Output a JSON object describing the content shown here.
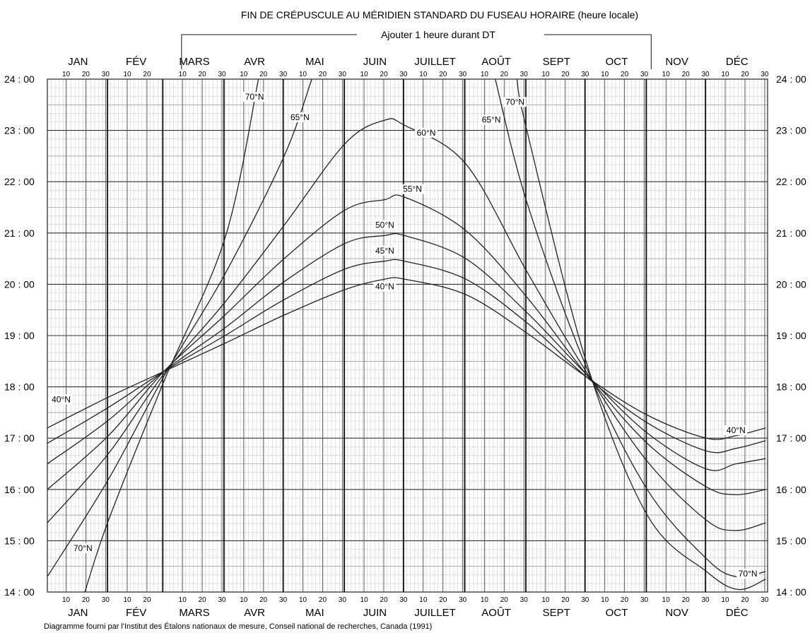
{
  "chart_data": {
    "type": "line",
    "title": "FIN DE CRÉPUSCULE AU MÉRIDIEN STANDARD DU FUSEAU HORAIRE (heure locale)",
    "dst_note": "Ajouter 1 heure durant DT",
    "dst_period": {
      "start_day_of_year": 69,
      "end_day_of_year": 307
    },
    "months": [
      "JAN",
      "FÉV",
      "MARS",
      "AVR",
      "MAI",
      "JUIN",
      "JUILLET",
      "AOÛT",
      "SEPT",
      "OCT",
      "NOV",
      "DÉC"
    ],
    "month_days": [
      31,
      28,
      31,
      30,
      31,
      30,
      31,
      31,
      30,
      31,
      30,
      31
    ],
    "day_ticks": [
      "10",
      "20",
      "30"
    ],
    "y_axis": {
      "min": 14,
      "max": 24,
      "tick_labels": [
        "14 : 00",
        "15 : 00",
        "16 : 00",
        "17 : 00",
        "18 : 00",
        "19 : 00",
        "20 : 00",
        "21 : 00",
        "22 : 00",
        "23 : 00",
        "24 : 00"
      ]
    },
    "grid": true,
    "x_unit": "day_of_year",
    "y_unit": "hours",
    "series": [
      {
        "name": "40°N",
        "points": [
          [
            1,
            17.2
          ],
          [
            32,
            17.8
          ],
          [
            60,
            18.3
          ],
          [
            91,
            18.85
          ],
          [
            121,
            19.4
          ],
          [
            152,
            19.9
          ],
          [
            172,
            20.1
          ],
          [
            182,
            20.1
          ],
          [
            213,
            19.8
          ],
          [
            244,
            19.05
          ],
          [
            274,
            18.2
          ],
          [
            305,
            17.45
          ],
          [
            335,
            17.0
          ],
          [
            350,
            17.05
          ],
          [
            365,
            17.2
          ]
        ]
      },
      {
        "name": "45°N",
        "points": [
          [
            1,
            16.9
          ],
          [
            32,
            17.6
          ],
          [
            60,
            18.3
          ],
          [
            91,
            19.0
          ],
          [
            121,
            19.7
          ],
          [
            152,
            20.3
          ],
          [
            172,
            20.45
          ],
          [
            182,
            20.45
          ],
          [
            213,
            20.1
          ],
          [
            244,
            19.25
          ],
          [
            274,
            18.2
          ],
          [
            305,
            17.3
          ],
          [
            335,
            16.75
          ],
          [
            350,
            16.8
          ],
          [
            365,
            16.95
          ]
        ]
      },
      {
        "name": "50°N",
        "points": [
          [
            1,
            16.5
          ],
          [
            32,
            17.35
          ],
          [
            60,
            18.3
          ],
          [
            91,
            19.15
          ],
          [
            121,
            20.05
          ],
          [
            152,
            20.8
          ],
          [
            172,
            20.95
          ],
          [
            182,
            20.95
          ],
          [
            213,
            20.5
          ],
          [
            244,
            19.45
          ],
          [
            274,
            18.25
          ],
          [
            305,
            17.1
          ],
          [
            335,
            16.4
          ],
          [
            350,
            16.5
          ],
          [
            365,
            16.6
          ]
        ]
      },
      {
        "name": "55°N",
        "points": [
          [
            1,
            16.0
          ],
          [
            32,
            17.05
          ],
          [
            60,
            18.3
          ],
          [
            91,
            19.4
          ],
          [
            121,
            20.5
          ],
          [
            152,
            21.45
          ],
          [
            172,
            21.65
          ],
          [
            182,
            21.7
          ],
          [
            213,
            21.05
          ],
          [
            244,
            19.75
          ],
          [
            274,
            18.25
          ],
          [
            305,
            16.9
          ],
          [
            335,
            16.05
          ],
          [
            350,
            15.9
          ],
          [
            365,
            16.0
          ]
        ]
      },
      {
        "name": "60°N",
        "points": [
          [
            1,
            15.35
          ],
          [
            32,
            16.7
          ],
          [
            60,
            18.25
          ],
          [
            91,
            19.65
          ],
          [
            121,
            21.15
          ],
          [
            152,
            22.75
          ],
          [
            172,
            23.2
          ],
          [
            182,
            23.1
          ],
          [
            213,
            22.35
          ],
          [
            244,
            20.25
          ],
          [
            274,
            18.3
          ],
          [
            305,
            16.55
          ],
          [
            335,
            15.4
          ],
          [
            350,
            15.2
          ],
          [
            365,
            15.35
          ]
        ]
      },
      {
        "name": "65°N",
        "points": [
          [
            1,
            14.3
          ],
          [
            32,
            16.2
          ],
          [
            60,
            18.2
          ],
          [
            91,
            20.2
          ],
          [
            121,
            22.5
          ],
          [
            135,
            24.0
          ]
        ]
      },
      {
        "name": "65°N",
        "points": [
          [
            228,
            24.0
          ],
          [
            244,
            21.6
          ],
          [
            274,
            18.4
          ],
          [
            305,
            16.0
          ],
          [
            335,
            14.65
          ],
          [
            350,
            14.3
          ],
          [
            365,
            14.4
          ]
        ]
      },
      {
        "name": "70°N",
        "points": [
          [
            20,
            14.0
          ],
          [
            32,
            15.4
          ],
          [
            60,
            18.1
          ],
          [
            91,
            20.9
          ],
          [
            108,
            24.0
          ]
        ]
      },
      {
        "name": "70°N",
        "points": [
          [
            239,
            24.0
          ],
          [
            244,
            23.0
          ],
          [
            274,
            18.5
          ],
          [
            305,
            15.5
          ],
          [
            335,
            14.4
          ],
          [
            351,
            14.05
          ],
          [
            365,
            14.25
          ]
        ]
      }
    ],
    "curve_labels": [
      {
        "name": "40°N",
        "x": 8,
        "y": 17.7
      },
      {
        "name": "40°N",
        "x": 350,
        "y": 17.1
      },
      {
        "name": "45°N",
        "x": 172,
        "y": 20.6
      },
      {
        "name": "50°N",
        "x": 172,
        "y": 21.1
      },
      {
        "name": "40°N",
        "x": 172,
        "y": 19.9
      },
      {
        "name": "55°N",
        "x": 186,
        "y": 21.8
      },
      {
        "name": "60°N",
        "x": 193,
        "y": 22.9
      },
      {
        "name": "65°N",
        "x": 129,
        "y": 23.2
      },
      {
        "name": "65°N",
        "x": 226,
        "y": 23.15
      },
      {
        "name": "70°N",
        "x": 106,
        "y": 23.6
      },
      {
        "name": "70°N",
        "x": 238,
        "y": 23.5
      },
      {
        "name": "70°N",
        "x": 19,
        "y": 14.8
      },
      {
        "name": "70°N",
        "x": 356,
        "y": 14.3
      }
    ]
  },
  "footer": "Diagramme fourni par l'Institut des Étalons nationaux de mesure, Conseil national de recherches, Canada (1991)"
}
